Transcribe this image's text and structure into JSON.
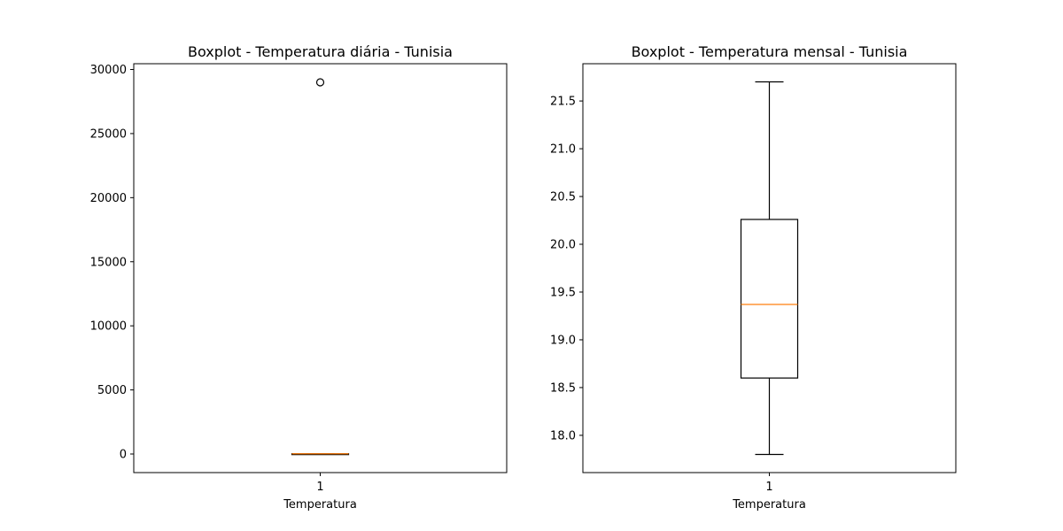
{
  "colors": {
    "box": "#000000",
    "median": "#ff7f0e",
    "background": "#ffffff"
  },
  "chart_data": [
    {
      "type": "boxplot",
      "title": "Boxplot - Temperatura diária - Tunisia",
      "xlabel": "Temperatura",
      "ylabel": "",
      "categories": [
        "1"
      ],
      "ylim": [
        -1450,
        30450
      ],
      "yticks": [
        0,
        5000,
        10000,
        15000,
        20000,
        25000,
        30000
      ],
      "ytick_labels": [
        "0",
        "5000",
        "10000",
        "15000",
        "20000",
        "25000",
        "30000"
      ],
      "grid": false,
      "boxes": [
        {
          "whisker_low": 14,
          "q1": 16.5,
          "median": 19.5,
          "q3": 22.5,
          "whisker_high": 25,
          "outliers": [
            29000
          ]
        }
      ]
    },
    {
      "type": "boxplot",
      "title": "Boxplot - Temperatura mensal - Tunisia",
      "xlabel": "Temperatura",
      "ylabel": "",
      "categories": [
        "1"
      ],
      "ylim": [
        17.61,
        21.89
      ],
      "yticks": [
        18.0,
        18.5,
        19.0,
        19.5,
        20.0,
        20.5,
        21.0,
        21.5
      ],
      "ytick_labels": [
        "18.0",
        "18.5",
        "19.0",
        "19.5",
        "20.0",
        "20.5",
        "21.0",
        "21.5"
      ],
      "grid": false,
      "boxes": [
        {
          "whisker_low": 17.8,
          "q1": 18.6,
          "median": 19.37,
          "q3": 20.26,
          "whisker_high": 21.7,
          "outliers": []
        }
      ]
    }
  ]
}
